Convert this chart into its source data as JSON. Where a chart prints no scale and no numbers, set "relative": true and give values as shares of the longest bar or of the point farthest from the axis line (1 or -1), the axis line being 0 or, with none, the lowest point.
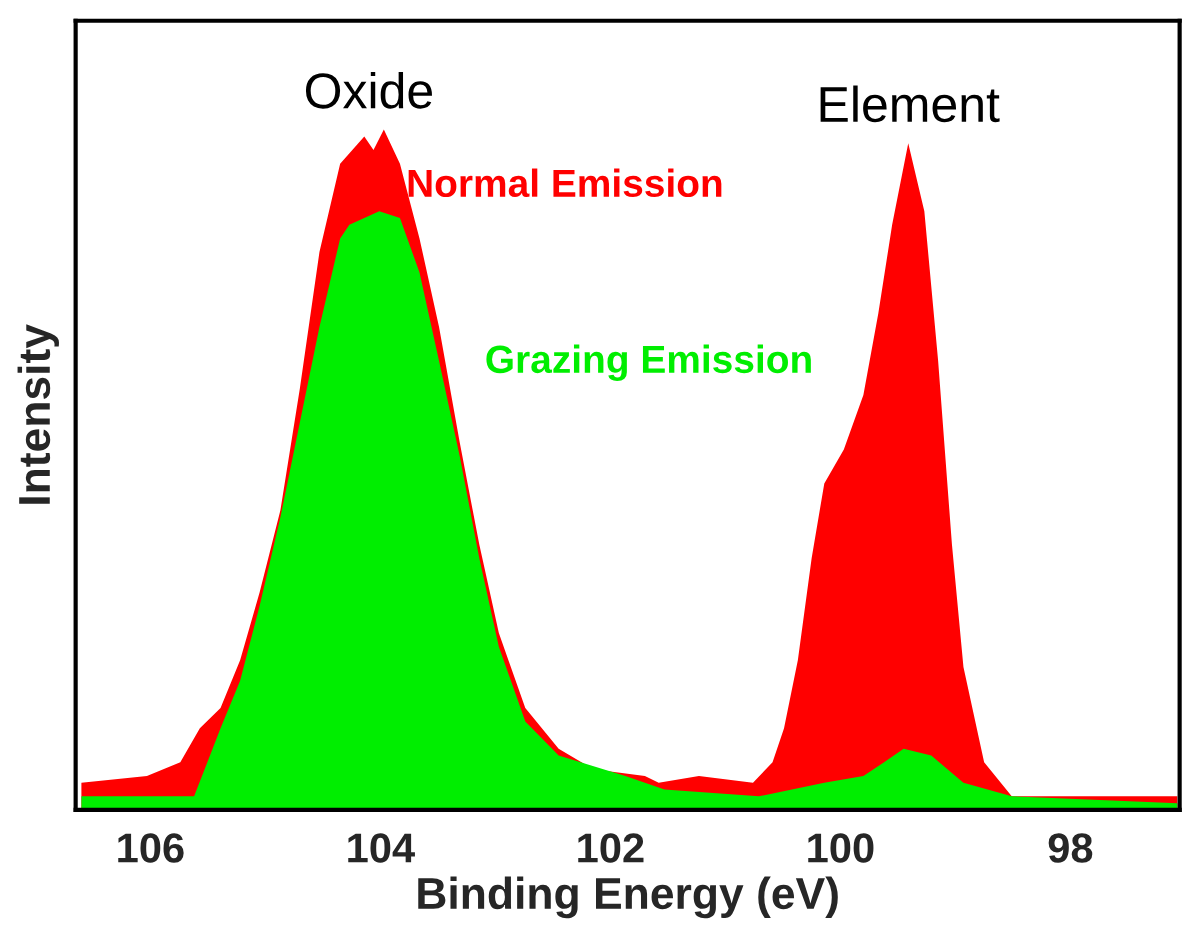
{
  "chart_data": {
    "type": "area",
    "relative": true,
    "xlabel": "Binding Energy (eV)",
    "ylabel": "Intensity",
    "xlim": [
      106.65,
      97.05
    ],
    "xticks": [
      106,
      104,
      102,
      100,
      98
    ],
    "grid": false,
    "legend": false,
    "annotations": [
      {
        "text": "Oxide",
        "x": 104.1,
        "y": 1.0
      },
      {
        "text": "Element",
        "x": 99.41,
        "y": 0.98
      }
    ],
    "series": [
      {
        "name": "Normal Emission",
        "color": "#ff0000",
        "x": [
          106.6,
          106.03,
          105.74,
          105.57,
          105.39,
          105.22,
          105.05,
          104.87,
          104.7,
          104.53,
          104.35,
          104.14,
          104.06,
          103.97,
          103.83,
          103.66,
          103.49,
          103.31,
          103.14,
          102.97,
          102.74,
          102.45,
          102.15,
          101.7,
          101.58,
          101.23,
          100.76,
          100.59,
          100.49,
          100.37,
          100.25,
          100.14,
          99.97,
          99.8,
          99.67,
          99.55,
          99.41,
          99.27,
          99.15,
          99.03,
          98.93,
          98.75,
          98.51,
          98.06,
          97.07
        ],
        "values": [
          0.04,
          0.05,
          0.07,
          0.12,
          0.15,
          0.22,
          0.32,
          0.44,
          0.62,
          0.82,
          0.95,
          0.99,
          0.97,
          1.0,
          0.95,
          0.84,
          0.71,
          0.54,
          0.39,
          0.26,
          0.15,
          0.09,
          0.06,
          0.05,
          0.04,
          0.05,
          0.04,
          0.07,
          0.12,
          0.22,
          0.37,
          0.48,
          0.53,
          0.61,
          0.73,
          0.86,
          0.98,
          0.88,
          0.66,
          0.39,
          0.21,
          0.07,
          0.02,
          0.02,
          0.02
        ]
      },
      {
        "name": "Grazing Emission",
        "color": "#00ee00",
        "x": [
          106.6,
          105.62,
          105.39,
          105.22,
          105.05,
          104.87,
          104.7,
          104.53,
          104.35,
          104.27,
          104.01,
          103.83,
          103.66,
          103.49,
          103.31,
          103.14,
          102.97,
          102.74,
          102.45,
          101.87,
          101.53,
          100.71,
          100.14,
          99.8,
          99.62,
          99.45,
          99.21,
          98.93,
          98.51,
          97.07
        ],
        "values": [
          0.02,
          0.02,
          0.12,
          0.19,
          0.3,
          0.43,
          0.57,
          0.71,
          0.84,
          0.86,
          0.88,
          0.87,
          0.79,
          0.66,
          0.52,
          0.37,
          0.24,
          0.13,
          0.08,
          0.05,
          0.03,
          0.02,
          0.04,
          0.05,
          0.07,
          0.09,
          0.08,
          0.04,
          0.02,
          0.01
        ]
      }
    ]
  }
}
